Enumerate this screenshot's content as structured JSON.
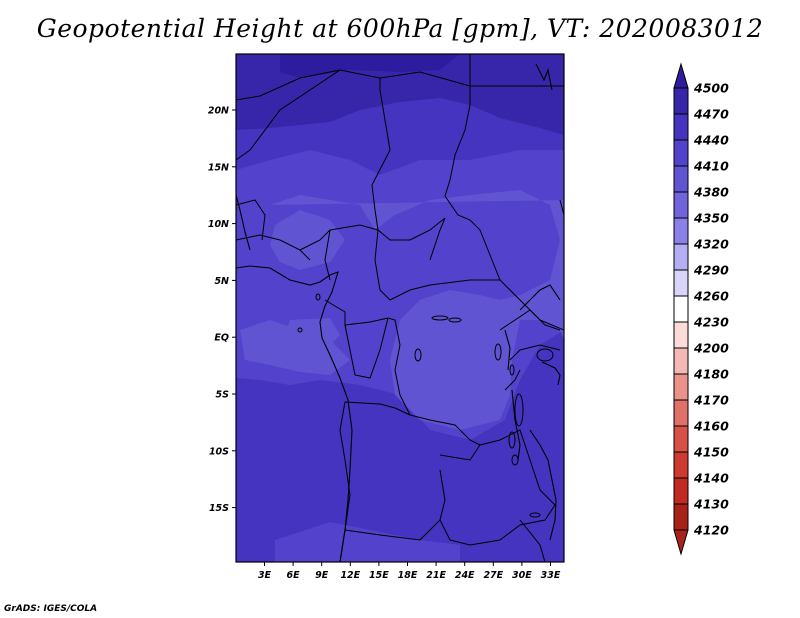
{
  "title": "Geopotential Height at 600hPa [gpm], VT: 2020083012",
  "credit": "GrADS: IGES/COLA",
  "map": {
    "lat_labels": [
      "20N",
      "15N",
      "10N",
      "5N",
      "EQ",
      "5S",
      "10S",
      "15S"
    ],
    "lon_labels": [
      "3E",
      "6E",
      "9E",
      "12E",
      "15E",
      "18E",
      "21E",
      "24E",
      "27E",
      "30E",
      "33E"
    ]
  },
  "colorbar": {
    "levels": [
      "4500",
      "4470",
      "4440",
      "4410",
      "4380",
      "4350",
      "4320",
      "4290",
      "4260",
      "4230",
      "4200",
      "4180",
      "4170",
      "4160",
      "4150",
      "4140",
      "4130",
      "4120"
    ],
    "colors": [
      "#2d1d9e",
      "#3726a9",
      "#4434bf",
      "#5342cb",
      "#6154d3",
      "#7164dc",
      "#8a80e8",
      "#b4aef2",
      "#d8d5f8",
      "#ffffff",
      "#fbdcd9",
      "#f3b9b4",
      "#e9938b",
      "#e07068",
      "#d85047",
      "#cf3a30",
      "#c02a20",
      "#a8221a"
    ]
  }
}
